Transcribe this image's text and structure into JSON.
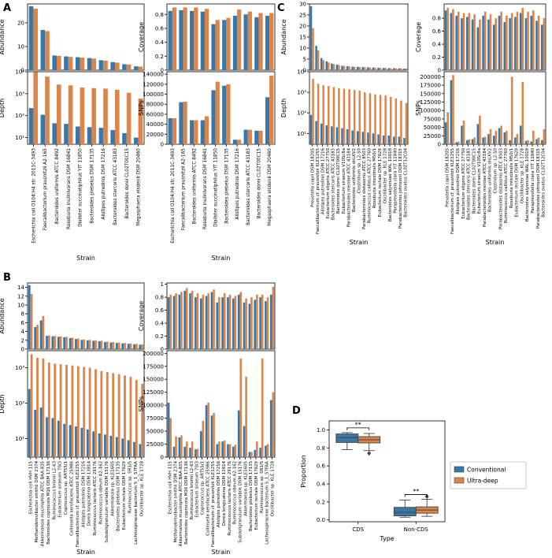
{
  "colors": {
    "conventional": "#3a76a6",
    "ultra_deep": "#dd8449"
  },
  "panel_labels": [
    "A",
    "B",
    "C",
    "D"
  ],
  "chart_data": [
    {
      "panel": "A",
      "type": "bar",
      "xlabel": "Strain",
      "categories": [
        "Escherichia coli O104:H4 str. 2011C-3493",
        "Faecalibacterium prausnitzii A2-165",
        "Bacteroides uniformis ATCC 8492",
        "Roseburia inulinivorans DSM 16841",
        "Dialister succinatiphilus YIT 11850",
        "Bacteroides plebeius DSM 17135",
        "Alistipes putredinis DSM 17216",
        "Bacteroides stercoris ATCC 43183",
        "Bacteroides dorei CL02T00C15",
        "Megasphaera elsdenii DSM 20460"
      ],
      "subplots": [
        {
          "id": "a-abundance",
          "ylabel": "Abundance",
          "scale": "linear",
          "ylim": [
            0,
            28
          ],
          "yticks": [
            0,
            10,
            20
          ],
          "series": [
            {
              "values": [
                27,
                17,
                6.2,
                5.8,
                5.5,
                5.1,
                4.2,
                3.4,
                2.5,
                1.6
              ]
            },
            {
              "values": [
                26,
                16.5,
                6,
                5.6,
                5.3,
                4.9,
                4.0,
                3.2,
                2.4,
                1.5
              ]
            }
          ]
        },
        {
          "id": "a-coverage",
          "ylabel": "Coverage",
          "scale": "linear",
          "ylim": [
            0,
            0.95
          ],
          "yticks": [
            0,
            0.2,
            0.4,
            0.6,
            0.8
          ],
          "series": [
            {
              "values": [
                0.85,
                0.86,
                0.85,
                0.84,
                0.66,
                0.72,
                0.78,
                0.8,
                0.76,
                0.78
              ]
            },
            {
              "values": [
                0.9,
                0.9,
                0.9,
                0.88,
                0.72,
                0.75,
                0.87,
                0.84,
                0.82,
                0.82
              ]
            }
          ]
        },
        {
          "id": "a-depth",
          "ylabel": "Depth",
          "scale": "log",
          "ylim": [
            5,
            10000
          ],
          "yticks": [
            10,
            100,
            1000,
            10000
          ],
          "ytick_labels": [
            "10¹",
            "10²",
            "10³",
            "10⁴"
          ],
          "series": [
            {
              "values": [
                220,
                110,
                45,
                42,
                32,
                30,
                28,
                22,
                16,
                10
              ]
            },
            {
              "values": [
                9500,
                6000,
                2600,
                2400,
                1900,
                1800,
                1700,
                1500,
                1100,
                600
              ]
            }
          ]
        },
        {
          "id": "a-snps",
          "ylabel": "SNPs",
          "scale": "linear",
          "ylim": [
            0,
            145000
          ],
          "yticks": [
            0,
            20000,
            40000,
            60000,
            80000,
            100000,
            120000,
            140000
          ],
          "series": [
            {
              "values": [
                52000,
                84000,
                48000,
                48000,
                108000,
                117000,
                9000,
                29000,
                27000,
                94000
              ]
            },
            {
              "values": [
                52000,
                85000,
                48000,
                56000,
                125000,
                120000,
                9000,
                29000,
                27000,
                137000
              ]
            }
          ]
        }
      ]
    },
    {
      "panel": "B",
      "type": "bar",
      "xlabel": "Strain",
      "categories": [
        "Escherichia coli HVH 115",
        "Methanobrevibacter smithii DSM 2374",
        "Akkermansia muciniphila ATCC BAA-835",
        "Bacteroides coprocola M16 DSM 17136",
        "Ruminococcus bromii L2-63",
        "Eubacterium siraeum 70/3",
        "Coprococcus sp. ART55/1",
        "Collinsella aerofaciens ATCC 25986",
        "Faecalibacterium cf. prausnitzii KLE1255",
        "Alistipes putredinis DSM 17216",
        "Dorea longicatena DSM 13814",
        "Ruminococcus lactaris ATCC 29176",
        "Ruminococcus obeum A2-162",
        "Subdoligranulum variabile DSM 15176",
        "Akkermansia sp. KLE1605",
        "Bacteroides plebeius DSM 17135",
        "Eubacterium rectale DSM 17629",
        "Ruminococcus sp. SR1/5",
        "Lachnospiraceae bacterium 5_1_57FAA",
        "Oscillibacter sp. KLE 1728"
      ],
      "subplots": [
        {
          "id": "b-abundance",
          "ylabel": "Abundance",
          "scale": "linear",
          "ylim": [
            0,
            15
          ],
          "yticks": [
            0,
            2,
            4,
            6,
            8,
            10,
            12,
            14
          ],
          "series": [
            {
              "values": [
                14.5,
                5.0,
                6.5,
                3.0,
                2.9,
                2.8,
                2.7,
                2.5,
                2.3,
                2.1,
                2.0,
                1.9,
                1.8,
                1.6,
                1.5,
                1.4,
                1.3,
                1.2,
                1.1,
                1.0
              ]
            },
            {
              "values": [
                12.5,
                5.5,
                7.5,
                3.1,
                3.0,
                2.9,
                2.8,
                2.6,
                2.4,
                2.2,
                2.1,
                2.0,
                1.9,
                1.7,
                1.6,
                1.5,
                1.4,
                1.3,
                1.2,
                1.1
              ]
            }
          ]
        },
        {
          "id": "b-coverage",
          "ylabel": "Coverage",
          "scale": "linear",
          "ylim": [
            0,
            1.02
          ],
          "yticks": [
            0,
            0.2,
            0.4,
            0.6,
            0.8,
            1.0
          ],
          "series": [
            {
              "values": [
                0.8,
                0.82,
                0.84,
                0.9,
                0.86,
                0.8,
                0.78,
                0.82,
                0.88,
                0.72,
                0.8,
                0.8,
                0.78,
                0.84,
                0.72,
                0.7,
                0.76,
                0.8,
                0.74,
                0.84
              ]
            },
            {
              "values": [
                0.84,
                0.86,
                0.88,
                0.94,
                0.9,
                0.86,
                0.84,
                0.86,
                0.92,
                0.8,
                0.86,
                0.84,
                0.82,
                0.88,
                0.78,
                0.8,
                0.84,
                0.84,
                0.8,
                0.96
              ]
            }
          ]
        },
        {
          "id": "b-depth",
          "ylabel": "Depth",
          "scale": "log",
          "ylim": [
            3,
            3000
          ],
          "yticks": [
            10,
            100,
            1000
          ],
          "ytick_labels": [
            "10¹",
            "10²",
            "10³"
          ],
          "series": [
            {
              "values": [
                250,
                65,
                75,
                40,
                38,
                32,
                26,
                24,
                22,
                20,
                18,
                16,
                14,
                13,
                12,
                11,
                10,
                9,
                8,
                7
              ]
            },
            {
              "values": [
                2400,
                1900,
                1800,
                1400,
                1300,
                1250,
                1200,
                1150,
                1100,
                1050,
                1000,
                900,
                800,
                750,
                700,
                650,
                600,
                550,
                450,
                350
              ]
            }
          ]
        },
        {
          "id": "b-snps",
          "ylabel": "SNPs",
          "scale": "linear",
          "ylim": [
            0,
            205000
          ],
          "yticks": [
            0,
            25000,
            50000,
            75000,
            100000,
            125000,
            150000,
            175000,
            200000
          ],
          "series": [
            {
              "values": [
                105000,
                20000,
                38000,
                20000,
                18000,
                15000,
                50000,
                100000,
                80000,
                25000,
                30000,
                25000,
                20000,
                90000,
                60000,
                10000,
                14000,
                18000,
                22000,
                110000
              ]
            },
            {
              "values": [
                75000,
                40000,
                42000,
                30000,
                30000,
                16000,
                70000,
                105000,
                85000,
                30000,
                32000,
                25000,
                24000,
                190000,
                155000,
                10000,
                30000,
                190000,
                25000,
                125000
              ]
            }
          ]
        }
      ]
    },
    {
      "panel": "C",
      "type": "bar",
      "xlabel": "Strain",
      "categories": [
        "Prevotella copri DSM 18205",
        "Faecalibacterium cf. prausnitzii KLE1255",
        "Alistipes putredinis DSM 17216",
        "Eubacterium eligens ATCC 27750",
        "Bacteroides stercoris ATCC 43183",
        "Bacteroides dorei CL02T00C15",
        "Eubacterium siraeum V10Sc8a",
        "Parabacteroides merdae ATCC 43184",
        "Bacteroides uniformis dnLKV2",
        "Clostridium sp. L2-50",
        "Parabacteroides distasonis ATCC 8503",
        "Ruminococcus callidus ATCC 27760",
        "Roseburia intestinalis M50/1",
        "Eubacterium rectale DSM 17629",
        "Oscillibacter sp. KLE 1728",
        "Bacteroides salyersiae WAL 10018",
        "Paraprevotella clara YIT 11840",
        "Parabacteroides johnsonii DSM 18315",
        "Bacteroides ovatus CL02T12C04"
      ],
      "subplots": [
        {
          "id": "c-abundance",
          "ylabel": "Abundance",
          "scale": "linear",
          "ylim": [
            0,
            30
          ],
          "yticks": [
            0,
            5,
            10,
            15,
            20,
            25,
            30
          ],
          "series": [
            {
              "values": [
                29,
                11,
                5.5,
                4.0,
                3.0,
                2.5,
                2.0,
                1.8,
                1.6,
                1.5,
                1.4,
                1.3,
                1.2,
                1.1,
                1.0,
                0.9,
                0.9,
                0.8,
                0.7
              ]
            },
            {
              "values": [
                19,
                9,
                4.5,
                3.5,
                2.8,
                2.3,
                1.9,
                1.7,
                1.5,
                1.4,
                1.3,
                1.2,
                1.1,
                1.0,
                1.0,
                0.9,
                0.8,
                0.8,
                0.7
              ]
            }
          ]
        },
        {
          "id": "c-coverage",
          "ylabel": "Coverage",
          "scale": "linear",
          "ylim": [
            0,
            1.02
          ],
          "yticks": [
            0,
            0.2,
            0.4,
            0.6,
            0.8
          ],
          "series": [
            {
              "values": [
                0.92,
                0.88,
                0.84,
                0.8,
                0.82,
                0.78,
                0.66,
                0.84,
                0.78,
                0.7,
                0.84,
                0.74,
                0.8,
                0.82,
                0.88,
                0.8,
                0.84,
                0.76,
                0.7
              ]
            },
            {
              "values": [
                0.96,
                0.94,
                0.9,
                0.88,
                0.88,
                0.86,
                0.78,
                0.9,
                0.86,
                0.8,
                0.9,
                0.84,
                0.88,
                0.9,
                0.96,
                0.9,
                0.92,
                0.84,
                0.8
              ]
            }
          ]
        },
        {
          "id": "c-depth",
          "ylabel": "Depth",
          "scale": "log",
          "ylim": [
            3,
            10000
          ],
          "yticks": [
            10,
            100,
            1000,
            10000
          ],
          "ytick_labels": [
            "10¹",
            "10²",
            "10³",
            "10⁴"
          ],
          "series": [
            {
              "values": [
                80,
                40,
                30,
                25,
                22,
                20,
                18,
                16,
                14,
                13,
                12,
                11,
                10,
                9,
                8,
                8,
                7,
                7,
                6
              ]
            },
            {
              "values": [
                4500,
                2600,
                2200,
                2000,
                1800,
                1600,
                1500,
                1400,
                1300,
                1200,
                1000,
                900,
                800,
                750,
                700,
                600,
                500,
                400,
                300
              ]
            }
          ]
        },
        {
          "id": "c-snps",
          "ylabel": "SNPs",
          "scale": "linear",
          "ylim": [
            0,
            215000
          ],
          "yticks": [
            0,
            25000,
            50000,
            75000,
            100000,
            125000,
            150000,
            175000,
            200000
          ],
          "series": [
            {
              "values": [
                65000,
                190000,
                6000,
                55000,
                12000,
                15000,
                60000,
                20000,
                30000,
                25000,
                48000,
                35000,
                12000,
                20000,
                55000,
                10000,
                8000,
                15000,
                12000
              ]
            },
            {
              "values": [
                95000,
                205000,
                8000,
                70000,
                15000,
                20000,
                85000,
                22000,
                45000,
                40000,
                55000,
                40000,
                200000,
                30000,
                185000,
                12000,
                40000,
                20000,
                45000
              ]
            }
          ]
        }
      ]
    },
    {
      "panel": "D",
      "type": "box",
      "xlabel": "Type",
      "ylabel": "Proportion",
      "categories": [
        "CDS",
        "Non-CDS"
      ],
      "ylim": [
        -0.02,
        1.1
      ],
      "yticks": [
        0.0,
        0.2,
        0.4,
        0.6,
        0.8,
        1.0
      ],
      "legend": {
        "position": "right",
        "entries": [
          "Conventional",
          "Ultra-deep"
        ]
      },
      "significance": [
        "**",
        "**"
      ],
      "series": [
        {
          "name": "Conventional",
          "boxes": [
            {
              "whisker_low": 0.78,
              "q1": 0.86,
              "median": 0.915,
              "q3": 0.955,
              "whisker_high": 0.97,
              "outliers": []
            },
            {
              "whisker_low": 0.03,
              "q1": 0.045,
              "median": 0.085,
              "q3": 0.14,
              "whisker_high": 0.22,
              "outliers": []
            }
          ]
        },
        {
          "name": "Ultra-deep",
          "boxes": [
            {
              "whisker_low": 0.77,
              "q1": 0.855,
              "median": 0.89,
              "q3": 0.925,
              "whisker_high": 0.96,
              "outliers": [
                0.74
              ]
            },
            {
              "whisker_low": 0.04,
              "q1": 0.075,
              "median": 0.11,
              "q3": 0.145,
              "whisker_high": 0.23,
              "outliers": [
                0.26
              ]
            }
          ]
        }
      ]
    }
  ]
}
